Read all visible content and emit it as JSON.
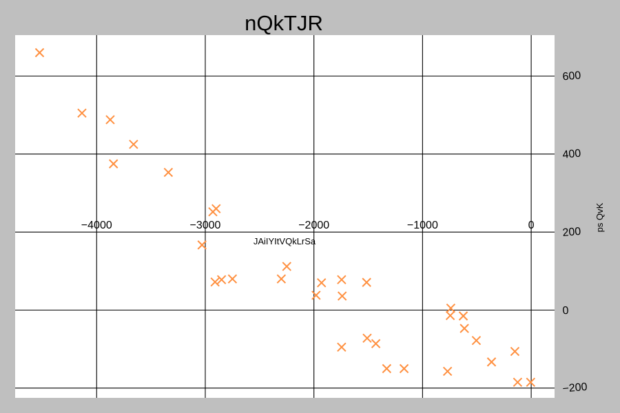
{
  "chart_data": {
    "type": "scatter",
    "title": "nQkTJR",
    "xlabel": "JAiIYItVQkLrSa",
    "ylabel": "ps QvK",
    "xlim": [
      -4750,
      215
    ],
    "ylim": [
      -225,
      705
    ],
    "xticks": [
      -4000,
      -3000,
      -2000,
      -1000,
      0
    ],
    "xtick_labels": [
      "−4000",
      "−3000",
      "−2000",
      "−1000",
      "0"
    ],
    "yticks": [
      -200,
      0,
      200,
      400,
      600
    ],
    "ytick_labels": [
      "−200",
      "0",
      "200",
      "400",
      "600"
    ],
    "grid": true,
    "marker": "x",
    "colors": {
      "marker": "#ff9040",
      "plot_bg": "#ffffff",
      "figure_bg": "#bfbfbf"
    },
    "series": [
      {
        "x": [
          -4525,
          -4135,
          -3875,
          -3660,
          -3845,
          -3340,
          -2930,
          -2900,
          -3030,
          -2910,
          -2850,
          -2750,
          -2300,
          -2250,
          -1980,
          -1930,
          -1745,
          -1740,
          -1515,
          -1745,
          -1510,
          -1430,
          -1330,
          -1170,
          -740,
          -745,
          -625,
          -615,
          -505,
          -365,
          -150,
          -125,
          -5,
          -770
        ],
        "y": [
          660,
          505,
          488,
          425,
          375,
          353,
          252,
          260,
          167,
          72,
          78,
          80,
          80,
          112,
          38,
          70,
          78,
          36,
          71,
          -95,
          -72,
          -86,
          -150,
          -150,
          5,
          -14,
          -15,
          -47,
          -78,
          -133,
          -106,
          -185,
          -185,
          -157
        ]
      }
    ]
  }
}
